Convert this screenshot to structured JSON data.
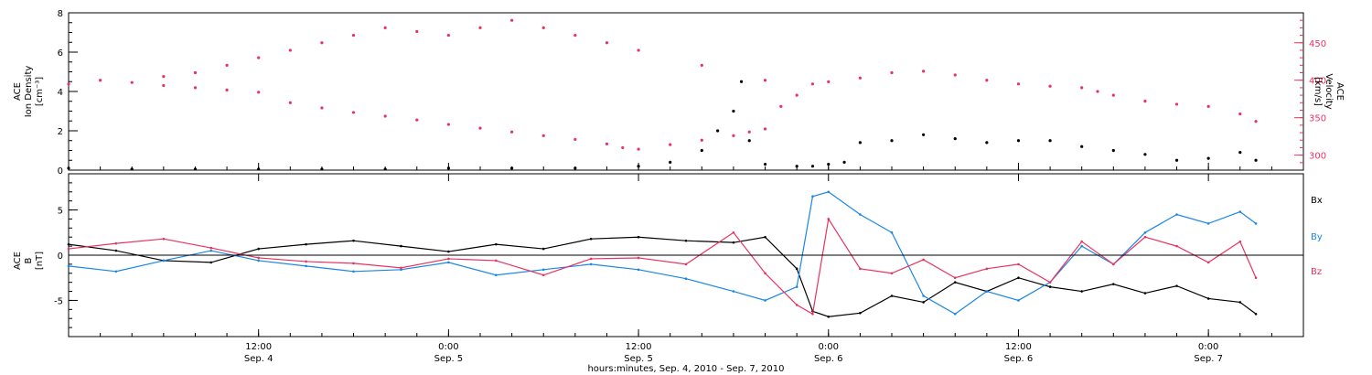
{
  "colors": {
    "black": "#000000",
    "red": "#e8335f",
    "blue": "#1a86e6"
  },
  "x_axis": {
    "title": "hours:minutes, Sep.  4, 2010 - Sep.  7, 2010",
    "ticks": [
      {
        "hour": 12,
        "time": "12:00",
        "date": "Sep. 4"
      },
      {
        "hour": 24,
        "time": "0:00",
        "date": "Sep. 5"
      },
      {
        "hour": 36,
        "time": "12:00",
        "date": "Sep. 5"
      },
      {
        "hour": 48,
        "time": "0:00",
        "date": "Sep. 6"
      },
      {
        "hour": 60,
        "time": "12:00",
        "date": "Sep. 6"
      },
      {
        "hour": 72,
        "time": "0:00",
        "date": "Sep. 7"
      }
    ],
    "range_hours": [
      0,
      78
    ]
  },
  "chart_data": [
    {
      "type": "scatter",
      "panel": "top",
      "ylabel_left": [
        "ACE",
        "Ion Density",
        "[cm⁻³]"
      ],
      "ylabel_right": [
        "ACE",
        "Velocity",
        "[km/s]"
      ],
      "ylim_left": [
        0,
        8
      ],
      "yticks_left": [
        "0",
        "2",
        "4",
        "6",
        "8"
      ],
      "ylim_right": [
        280,
        490
      ],
      "yticks_right": [
        "300",
        "350",
        "400",
        "450"
      ],
      "series": [
        {
          "axis": "left",
          "color": "black",
          "x": [
            0,
            4,
            8,
            12,
            16,
            20,
            24,
            28,
            32,
            36,
            38,
            40,
            41,
            42,
            42.5,
            43,
            44,
            46,
            47,
            48,
            49,
            50,
            52,
            54,
            56,
            58,
            60,
            62,
            64,
            66,
            68,
            70,
            72,
            74,
            75
          ],
          "y": [
            0.1,
            0.05,
            0.05,
            0.05,
            0.05,
            0.05,
            0.1,
            0.1,
            0.1,
            0.2,
            0.4,
            1.0,
            2.0,
            3.0,
            4.5,
            1.5,
            0.3,
            0.2,
            0.2,
            0.3,
            0.4,
            1.4,
            1.5,
            1.8,
            1.6,
            1.4,
            1.5,
            1.5,
            1.2,
            1.0,
            0.8,
            0.5,
            0.6,
            0.9,
            0.5
          ]
        },
        {
          "axis": "right",
          "color": "red",
          "x": [
            0,
            2,
            4,
            6,
            8,
            10,
            12,
            14,
            16,
            18,
            20,
            22,
            24,
            26,
            28,
            30,
            32,
            34,
            35,
            36,
            38,
            40,
            42,
            43,
            44,
            45,
            46,
            47,
            48,
            50,
            52,
            54,
            56,
            58,
            60,
            62,
            64,
            65,
            66,
            68,
            70,
            72,
            74,
            75
          ],
          "y": [
            395,
            400,
            397,
            393,
            390,
            387,
            384,
            370,
            363,
            357,
            352,
            347,
            341,
            336,
            331,
            326,
            321,
            315,
            310,
            308,
            314,
            320,
            326,
            331,
            335,
            365,
            380,
            395,
            398,
            403,
            410,
            412,
            407,
            400,
            395,
            392,
            390,
            385,
            380,
            372,
            368,
            365,
            355,
            345
          ]
        },
        {
          "axis": "right",
          "color": "red",
          "name_hidden": "scattered",
          "x": [
            6,
            8,
            10,
            12,
            14,
            16,
            18,
            20,
            22,
            24,
            26,
            28,
            30,
            32,
            34,
            36,
            40,
            44
          ],
          "y": [
            405,
            410,
            420,
            430,
            440,
            450,
            460,
            470,
            465,
            460,
            470,
            480,
            470,
            460,
            450,
            440,
            420,
            400
          ]
        }
      ]
    },
    {
      "type": "line",
      "panel": "bottom",
      "ylabel_left": [
        "ACE",
        "B",
        "[nT]"
      ],
      "ylim": [
        -9,
        9
      ],
      "yticks": [
        "-5",
        "0",
        "5"
      ],
      "legend": [
        "Bx",
        "By",
        "Bz"
      ],
      "series": [
        {
          "name": "Bx",
          "color": "black",
          "x": [
            0,
            3,
            6,
            9,
            12,
            15,
            18,
            21,
            24,
            27,
            30,
            33,
            36,
            39,
            42,
            44,
            46,
            47,
            48,
            50,
            52,
            54,
            56,
            58,
            60,
            62,
            64,
            66,
            68,
            70,
            72,
            74,
            75
          ],
          "y": [
            1.2,
            0.5,
            -0.6,
            -0.8,
            0.7,
            1.2,
            1.6,
            1.0,
            0.4,
            1.2,
            0.7,
            1.8,
            2.0,
            1.6,
            1.4,
            2.0,
            -1.5,
            -6.2,
            -6.8,
            -6.4,
            -4.5,
            -5.2,
            -3.0,
            -4.0,
            -2.5,
            -3.5,
            -4.0,
            -3.2,
            -4.2,
            -3.4,
            -4.8,
            -5.2,
            -6.5
          ]
        },
        {
          "name": "By",
          "color": "blue",
          "x": [
            0,
            3,
            6,
            9,
            12,
            15,
            18,
            21,
            24,
            27,
            30,
            33,
            36,
            39,
            42,
            44,
            46,
            47,
            48,
            50,
            52,
            54,
            56,
            58,
            60,
            62,
            64,
            66,
            68,
            70,
            72,
            74,
            75
          ],
          "y": [
            -1.2,
            -1.8,
            -0.6,
            0.5,
            -0.6,
            -1.2,
            -1.8,
            -1.6,
            -0.8,
            -2.2,
            -1.6,
            -1.0,
            -1.6,
            -2.6,
            -4.0,
            -5.0,
            -3.5,
            6.5,
            7.0,
            4.5,
            2.5,
            -4.5,
            -6.5,
            -4.0,
            -5.0,
            -3.0,
            1.0,
            -1.0,
            2.5,
            4.5,
            3.5,
            4.8,
            3.5
          ]
        },
        {
          "name": "Bz",
          "color": "red",
          "x": [
            0,
            3,
            6,
            9,
            12,
            15,
            18,
            21,
            24,
            27,
            30,
            33,
            36,
            39,
            42,
            44,
            46,
            47,
            48,
            50,
            52,
            54,
            56,
            58,
            60,
            62,
            64,
            66,
            68,
            70,
            72,
            74,
            75
          ],
          "y": [
            0.7,
            1.3,
            1.8,
            0.8,
            -0.3,
            -0.7,
            -0.9,
            -1.4,
            -0.4,
            -0.6,
            -2.2,
            -0.4,
            -0.3,
            -1.0,
            2.5,
            -2.0,
            -5.5,
            -6.5,
            4.0,
            -1.5,
            -2.0,
            -0.5,
            -2.5,
            -1.5,
            -1.0,
            -3.0,
            1.5,
            -1.0,
            2.0,
            1.0,
            -0.8,
            1.5,
            -2.5
          ]
        }
      ]
    }
  ]
}
